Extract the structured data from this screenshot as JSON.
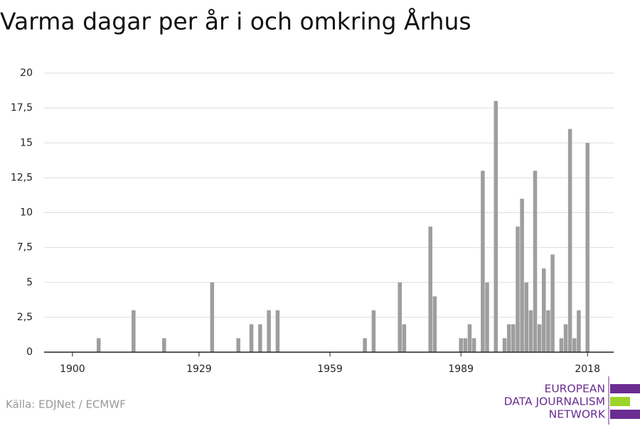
{
  "chart_data": {
    "type": "bar",
    "title": "Varma dagar per år i och omkring Århus",
    "x": [
      1906,
      1914,
      1921,
      1932,
      1938,
      1941,
      1943,
      1945,
      1947,
      1967,
      1969,
      1975,
      1976,
      1982,
      1983,
      1989,
      1990,
      1991,
      1992,
      1994,
      1995,
      1997,
      1999,
      2000,
      2001,
      2002,
      2003,
      2004,
      2005,
      2006,
      2007,
      2008,
      2009,
      2010,
      2012,
      2013,
      2014,
      2015,
      2016,
      2018
    ],
    "values": [
      1,
      3,
      1,
      5,
      1,
      2,
      2,
      3,
      3,
      1,
      3,
      5,
      2,
      9,
      4,
      1,
      1,
      2,
      1,
      13,
      5,
      18,
      1,
      2,
      2,
      9,
      11,
      5,
      3,
      13,
      2,
      6,
      3,
      7,
      1,
      2,
      16,
      1,
      3,
      15
    ],
    "color": "#9e9e9e",
    "xlim": [
      1893.5,
      2024
    ],
    "xticks": [
      1900,
      1929,
      1959,
      1989,
      2018
    ],
    "ylim": [
      0,
      20
    ],
    "yticks": [
      0,
      {
        "value": 2.5,
        "label": "2,5"
      },
      5,
      {
        "value": 7.5,
        "label": "7,5"
      },
      10,
      {
        "value": 12.5,
        "label": "12,5"
      },
      15,
      {
        "value": 17.5,
        "label": "17,5"
      },
      20
    ],
    "grid": true,
    "source": "Källa: EDJNet / ECMWF"
  },
  "logo": {
    "lines": [
      "EUROPEAN",
      "DATA JOURNALISM",
      "NETWORK"
    ]
  }
}
